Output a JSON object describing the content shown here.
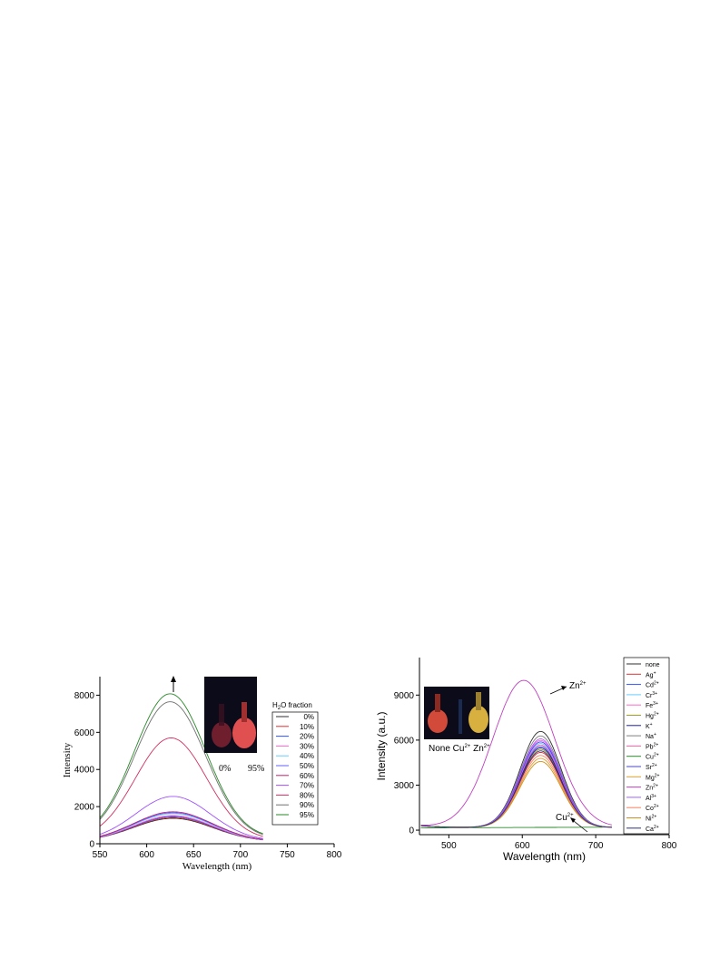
{
  "charts": [
    {
      "id": "aie",
      "type": "line",
      "xlabel": "Wavelength (nm)",
      "ylabel": "Intensity",
      "xlim": [
        550,
        800
      ],
      "ylim": [
        0,
        9000
      ],
      "xticks": [
        550,
        600,
        650,
        700,
        750,
        800
      ],
      "yticks": [
        0,
        2000,
        4000,
        6000,
        8000
      ],
      "legend_title": "H2O fraction",
      "legend_title_main": "H",
      "legend_title_sub": "2",
      "legend_title_rest": "O fraction",
      "inset_labels": [
        "0%",
        "95%"
      ],
      "arrow": "up",
      "series": [
        {
          "name": "0%",
          "color": "#2f2f2f",
          "peak": 1250,
          "center": 628,
          "width": 42,
          "base": 120
        },
        {
          "name": "10%",
          "color": "#e03030",
          "peak": 1300,
          "center": 628,
          "width": 42,
          "base": 120
        },
        {
          "name": "20%",
          "color": "#3050ff",
          "peak": 1350,
          "center": 628,
          "width": 42,
          "base": 120
        },
        {
          "name": "30%",
          "color": "#ff66cc",
          "peak": 1400,
          "center": 628,
          "width": 42,
          "base": 120
        },
        {
          "name": "40%",
          "color": "#66ccff",
          "peak": 1500,
          "center": 628,
          "width": 42,
          "base": 120
        },
        {
          "name": "50%",
          "color": "#6060ff",
          "peak": 1550,
          "center": 628,
          "width": 42,
          "base": 120
        },
        {
          "name": "60%",
          "color": "#c0206f",
          "peak": 1600,
          "center": 628,
          "width": 42,
          "base": 120
        },
        {
          "name": "70%",
          "color": "#a050ff",
          "peak": 2400,
          "center": 628,
          "width": 40,
          "base": 150
        },
        {
          "name": "80%",
          "color": "#d03060",
          "peak": 5500,
          "center": 626,
          "width": 38,
          "base": 200
        },
        {
          "name": "90%",
          "color": "#707070",
          "peak": 7400,
          "center": 625,
          "width": 38,
          "base": 250
        },
        {
          "name": "95%",
          "color": "#2a8a2a",
          "peak": 7800,
          "center": 625,
          "width": 38,
          "base": 280
        }
      ]
    },
    {
      "id": "ions",
      "type": "line",
      "xlabel": "Wavelength (nm)",
      "ylabel": "Intensity (a.u.)",
      "xlim": [
        460,
        800
      ],
      "ylim": [
        -300,
        11500
      ],
      "xticks": [
        500,
        600,
        700,
        800
      ],
      "yticks": [
        0,
        3000,
        6000,
        9000
      ],
      "inset_caption": "None Cu2+ Zn2+",
      "inset_caption_parts": [
        "None Cu",
        "2+",
        " Zn",
        "2+"
      ],
      "annotations": [
        {
          "label_main": "Zn",
          "label_sup": "2+"
        },
        {
          "label_main": "Cu",
          "label_sup": "2+"
        }
      ],
      "series": [
        {
          "name": "none",
          "main": "none",
          "sup": "",
          "color": "#2f2f2f",
          "peak": 6400,
          "center": 625,
          "width": 28
        },
        {
          "name": "Ag+",
          "main": "Ag",
          "sup": "+",
          "color": "#e03030",
          "peak": 5000,
          "center": 625,
          "width": 28
        },
        {
          "name": "Cd2+",
          "main": "Cd",
          "sup": "2+",
          "color": "#3050ff",
          "peak": 5400,
          "center": 625,
          "width": 28
        },
        {
          "name": "Cr3+",
          "main": "Cr",
          "sup": "3+",
          "color": "#66ccff",
          "peak": 5600,
          "center": 625,
          "width": 28
        },
        {
          "name": "Fe3+",
          "main": "Fe",
          "sup": "3+",
          "color": "#ff66cc",
          "peak": 5800,
          "center": 625,
          "width": 28
        },
        {
          "name": "Hg2+",
          "main": "Hg",
          "sup": "2+",
          "color": "#a0a020",
          "peak": 5200,
          "center": 625,
          "width": 28
        },
        {
          "name": "K+",
          "main": "K",
          "sup": "+",
          "color": "#202080",
          "peak": 5300,
          "center": 625,
          "width": 28
        },
        {
          "name": "Na+",
          "main": "Na",
          "sup": "+",
          "color": "#808080",
          "peak": 6100,
          "center": 625,
          "width": 28
        },
        {
          "name": "Pb2+",
          "main": "Pb",
          "sup": "2+",
          "color": "#ff60a0",
          "peak": 5500,
          "center": 625,
          "width": 28
        },
        {
          "name": "Cu2+",
          "main": "Cu",
          "sup": "2+",
          "color": "#2a8a2a",
          "peak": 0,
          "center": 625,
          "width": 28
        },
        {
          "name": "Sr2+",
          "main": "Sr",
          "sup": "2+",
          "color": "#4040ff",
          "peak": 5700,
          "center": 625,
          "width": 28
        },
        {
          "name": "Mg2+",
          "main": "Mg",
          "sup": "2+",
          "color": "#e0a030",
          "peak": 4600,
          "center": 625,
          "width": 28
        },
        {
          "name": "Zn2+",
          "main": "Zn",
          "sup": "2+",
          "color": "#c040c0",
          "peak": 9800,
          "center": 602,
          "width": 42
        },
        {
          "name": "Al3+",
          "main": "Al",
          "sup": "3+",
          "color": "#a060ff",
          "peak": 5900,
          "center": 625,
          "width": 28
        },
        {
          "name": "Co2+",
          "main": "Co",
          "sup": "2+",
          "color": "#ff8060",
          "peak": 4800,
          "center": 625,
          "width": 28
        },
        {
          "name": "Ni2+",
          "main": "Ni",
          "sup": "2+",
          "color": "#d09020",
          "peak": 4400,
          "center": 625,
          "width": 28
        },
        {
          "name": "Ca2+",
          "main": "Ca",
          "sup": "2+",
          "color": "#303080",
          "peak": 5100,
          "center": 625,
          "width": 28
        }
      ]
    }
  ]
}
